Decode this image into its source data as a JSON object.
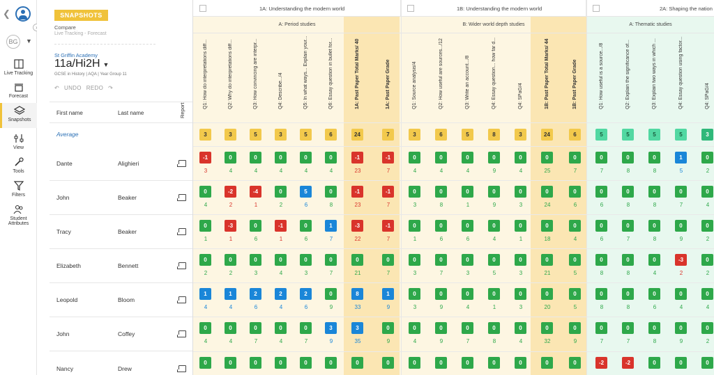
{
  "nav": {
    "user_initials": "BG",
    "items": [
      {
        "label": "Live Tracking",
        "icon": "book-icon",
        "active": false
      },
      {
        "label": "Forecast",
        "icon": "forecast-icon",
        "active": false
      },
      {
        "label": "Snapshots",
        "icon": "layers-icon",
        "active": true
      },
      {
        "label": "View",
        "icon": "sliders-icon",
        "active": false
      },
      {
        "label": "Tools",
        "icon": "wrench-icon",
        "active": false
      },
      {
        "label": "Filters",
        "icon": "filter-icon",
        "active": false
      },
      {
        "label": "Student Attributes",
        "icon": "users-icon",
        "active": false
      }
    ]
  },
  "panel": {
    "badge": "SNAPSHOTS",
    "compare": "Compare",
    "compare_sub": "Live Tracking - Forecast",
    "school": "St Griffin Academy",
    "group": "11a/Hi2H",
    "meta": "GCSE in History | AQA | Year Group 11",
    "undo": "UNDO",
    "redo": "REDO",
    "col_first": "First name",
    "col_last": "Last name",
    "col_report": "Report",
    "average_label": "Average"
  },
  "colors": {
    "red": "#d9342b",
    "green": "#2ea84a",
    "blue": "#1a86d8",
    "amber": "#f2c94c",
    "mint": "#52d8a2",
    "total_bg": "#fbe6b3",
    "sectA_bg": "#fdf6e2",
    "sectB_bg": "#fdf6e2",
    "sect2A_bg": "#e8f8ef"
  },
  "sections": [
    {
      "label": "1A: Understanding the modern world",
      "sub": "A: Period studies"
    },
    {
      "label": "1B: Understanding the modern world",
      "sub": "B: Wider world depth studies"
    },
    {
      "label": "2A: Shaping the nation",
      "sub": "A: Thematic studies"
    }
  ],
  "columns": [
    {
      "label": "Q1: How do interpretations diff...",
      "sect": 0,
      "total": false
    },
    {
      "label": "Q2: Why do interpretations diff...",
      "sect": 0,
      "total": false
    },
    {
      "label": "Q3: How convincing are interpr...",
      "sect": 0,
      "total": false
    },
    {
      "label": "Q4: Describe.../4",
      "sect": 0,
      "total": false
    },
    {
      "label": "Q5: In what ways... Explain your...",
      "sect": 0,
      "total": false
    },
    {
      "label": "Q6: Essay question in bullet for...",
      "sect": 0,
      "total": false
    },
    {
      "label": "1A: Past Paper Total Marks/ 40",
      "sect": 0,
      "total": true
    },
    {
      "label": "1A: Past Paper Grade",
      "sect": 0,
      "total": true
    },
    {
      "label": "Q1: Source analysis/4",
      "sect": 1,
      "total": false
    },
    {
      "label": "Q2: How useful are sources.../12",
      "sect": 1,
      "total": false
    },
    {
      "label": "Q3: Write an account.../8",
      "sect": 1,
      "total": false
    },
    {
      "label": "Q4: Essay question... how far d...",
      "sect": 1,
      "total": false
    },
    {
      "label": "Q4: SPaG/4",
      "sect": 1,
      "total": false
    },
    {
      "label": "1B: Past Paper Total Marks/ 44",
      "sect": 1,
      "total": true
    },
    {
      "label": "1B: Past Paper Grade",
      "sect": 1,
      "total": true
    },
    {
      "label": "Q1: How useful is a source.../8",
      "sect": 2,
      "total": false
    },
    {
      "label": "Q2: Explain the significance of...",
      "sect": 2,
      "total": false
    },
    {
      "label": "Q3: Explain two ways in which ...",
      "sect": 2,
      "total": false
    },
    {
      "label": "Q4: Essay question using factor...",
      "sect": 2,
      "total": false
    },
    {
      "label": "Q4: SPaG/4",
      "sect": 2,
      "total": false
    }
  ],
  "average": [
    "3",
    "3",
    "5",
    "3",
    "5",
    "6",
    "24",
    "7",
    "3",
    "6",
    "5",
    "8",
    "3",
    "24",
    "6",
    "5",
    "5",
    "5",
    "5",
    "3"
  ],
  "students": [
    {
      "first": "Dante",
      "last": "Alighieri",
      "chips": [
        "-1",
        "0",
        "0",
        "0",
        "0",
        "0",
        "-1",
        "-1",
        "0",
        "0",
        "0",
        "0",
        "0",
        "0",
        "0",
        "0",
        "0",
        "0",
        "1",
        "0"
      ],
      "vals": [
        "3",
        "4",
        "4",
        "4",
        "4",
        "4",
        "23",
        "7",
        "4",
        "4",
        "4",
        "9",
        "4",
        "25",
        "7",
        "7",
        "8",
        "8",
        "5",
        "2"
      ]
    },
    {
      "first": "John",
      "last": "Beaker",
      "chips": [
        "0",
        "-2",
        "-4",
        "0",
        "5",
        "0",
        "-1",
        "-1",
        "0",
        "0",
        "0",
        "0",
        "0",
        "0",
        "0",
        "0",
        "0",
        "0",
        "0",
        "0"
      ],
      "vals": [
        "4",
        "2",
        "1",
        "2",
        "6",
        "8",
        "23",
        "7",
        "3",
        "8",
        "1",
        "9",
        "3",
        "24",
        "6",
        "6",
        "8",
        "8",
        "7",
        "4"
      ]
    },
    {
      "first": "Tracy",
      "last": "Beaker",
      "chips": [
        "0",
        "-3",
        "0",
        "-1",
        "0",
        "1",
        "-3",
        "-1",
        "0",
        "0",
        "0",
        "0",
        "0",
        "0",
        "0",
        "0",
        "0",
        "0",
        "0",
        "0"
      ],
      "vals": [
        "1",
        "1",
        "6",
        "1",
        "6",
        "7",
        "22",
        "7",
        "1",
        "6",
        "6",
        "4",
        "1",
        "18",
        "4",
        "6",
        "7",
        "8",
        "9",
        "2"
      ]
    },
    {
      "first": "Elizabeth",
      "last": "Bennett",
      "chips": [
        "0",
        "0",
        "0",
        "0",
        "0",
        "0",
        "0",
        "0",
        "0",
        "0",
        "0",
        "0",
        "0",
        "0",
        "0",
        "0",
        "0",
        "0",
        "-3",
        "0"
      ],
      "vals": [
        "2",
        "2",
        "3",
        "4",
        "3",
        "7",
        "21",
        "7",
        "3",
        "7",
        "3",
        "5",
        "3",
        "21",
        "5",
        "8",
        "8",
        "4",
        "2",
        "2"
      ]
    },
    {
      "first": "Leopold",
      "last": "Bloom",
      "chips": [
        "1",
        "1",
        "2",
        "2",
        "2",
        "0",
        "8",
        "1",
        "0",
        "0",
        "0",
        "0",
        "0",
        "0",
        "0",
        "0",
        "0",
        "0",
        "0",
        "0"
      ],
      "vals": [
        "4",
        "4",
        "6",
        "4",
        "6",
        "9",
        "33",
        "9",
        "3",
        "9",
        "4",
        "1",
        "3",
        "20",
        "5",
        "8",
        "8",
        "6",
        "4",
        "4"
      ]
    },
    {
      "first": "John",
      "last": "Coffey",
      "chips": [
        "0",
        "0",
        "0",
        "0",
        "0",
        "3",
        "3",
        "0",
        "0",
        "0",
        "0",
        "0",
        "0",
        "0",
        "0",
        "0",
        "0",
        "0",
        "0",
        "0"
      ],
      "vals": [
        "4",
        "4",
        "7",
        "4",
        "7",
        "9",
        "35",
        "9",
        "4",
        "9",
        "7",
        "8",
        "4",
        "32",
        "9",
        "7",
        "7",
        "8",
        "9",
        "2"
      ]
    },
    {
      "first": "Nancy",
      "last": "Drew",
      "chips": [
        "0",
        "0",
        "0",
        "0",
        "0",
        "0",
        "0",
        "0",
        "0",
        "0",
        "0",
        "0",
        "0",
        "0",
        "0",
        "-2",
        "-2",
        "0",
        "0",
        "0"
      ],
      "vals": [
        "",
        "",
        "",
        "",
        "",
        "",
        "",
        "",
        "",
        "",
        "",
        "",
        "",
        "",
        "",
        "",
        "",
        "",
        "",
        ""
      ]
    }
  ]
}
